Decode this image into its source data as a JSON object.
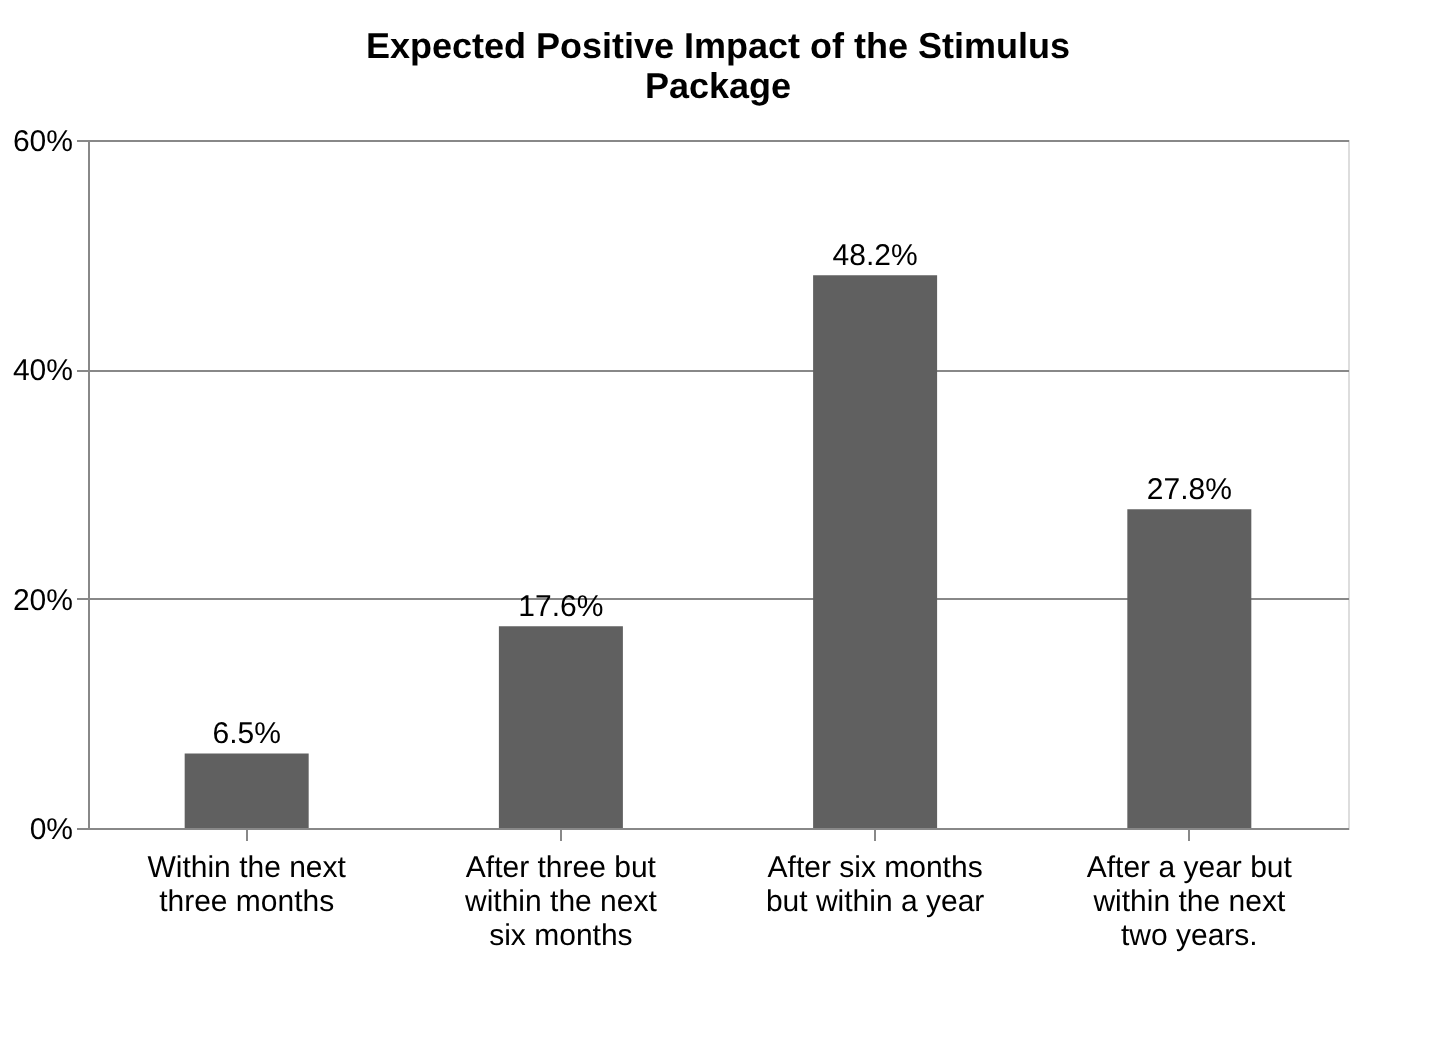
{
  "chart_data": {
    "type": "bar",
    "title": "Expected Positive Impact of the Stimulus Package",
    "categories": [
      "Within the next three months",
      "After three but within the next six months",
      "After six months but within a year",
      "After a year but within the next two years."
    ],
    "values": [
      6.5,
      17.6,
      48.2,
      27.8
    ],
    "color": "#606060",
    "value_labels": [
      "6.5%",
      "17.6%",
      "48.2%",
      "27.8%"
    ],
    "ylim": [
      0,
      60
    ],
    "yticks": [
      {
        "value": 0,
        "label": "0%"
      },
      {
        "value": 20,
        "label": "20%"
      },
      {
        "value": 40,
        "label": "40%"
      },
      {
        "value": 60,
        "label": "60%"
      }
    ],
    "grid": "y"
  }
}
